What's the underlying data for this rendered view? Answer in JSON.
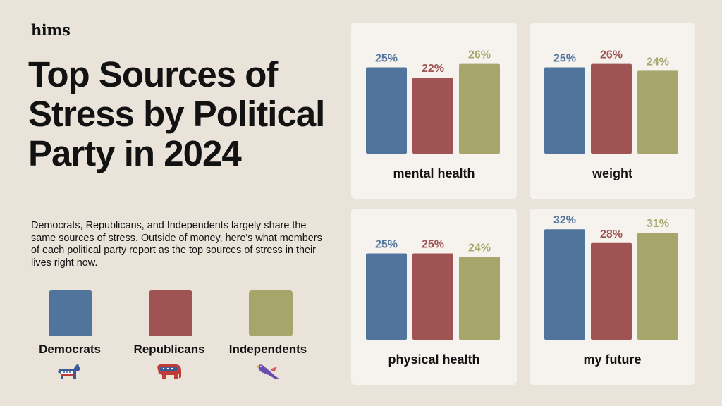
{
  "brand": "hims",
  "title": "Top Sources of Stress by Political Party in 2024",
  "subtitle": "Democrats, Republicans, and Independents largely share the same sources of stress. Outside of money, here's what members of each political party report as the top sources of stress in their lives right now.",
  "legend": [
    {
      "label": "Democrats",
      "color": "#50749c",
      "icon": "donkey-icon"
    },
    {
      "label": "Republicans",
      "color": "#a05353",
      "icon": "elephant-icon"
    },
    {
      "label": "Independents",
      "color": "#a6a66a",
      "icon": "eagle-icon"
    }
  ],
  "chart_data": [
    {
      "type": "bar",
      "title": "mental health",
      "categories": [
        "Democrats",
        "Republicans",
        "Independents"
      ],
      "values": [
        25,
        22,
        26
      ],
      "unit": "%"
    },
    {
      "type": "bar",
      "title": "weight",
      "categories": [
        "Democrats",
        "Republicans",
        "Independents"
      ],
      "values": [
        25,
        26,
        24
      ],
      "unit": "%"
    },
    {
      "type": "bar",
      "title": "physical health",
      "categories": [
        "Democrats",
        "Republicans",
        "Independents"
      ],
      "values": [
        25,
        25,
        24
      ],
      "unit": "%"
    },
    {
      "type": "bar",
      "title": "my future",
      "categories": [
        "Democrats",
        "Republicans",
        "Independents"
      ],
      "values": [
        32,
        28,
        31
      ],
      "unit": "%"
    }
  ]
}
